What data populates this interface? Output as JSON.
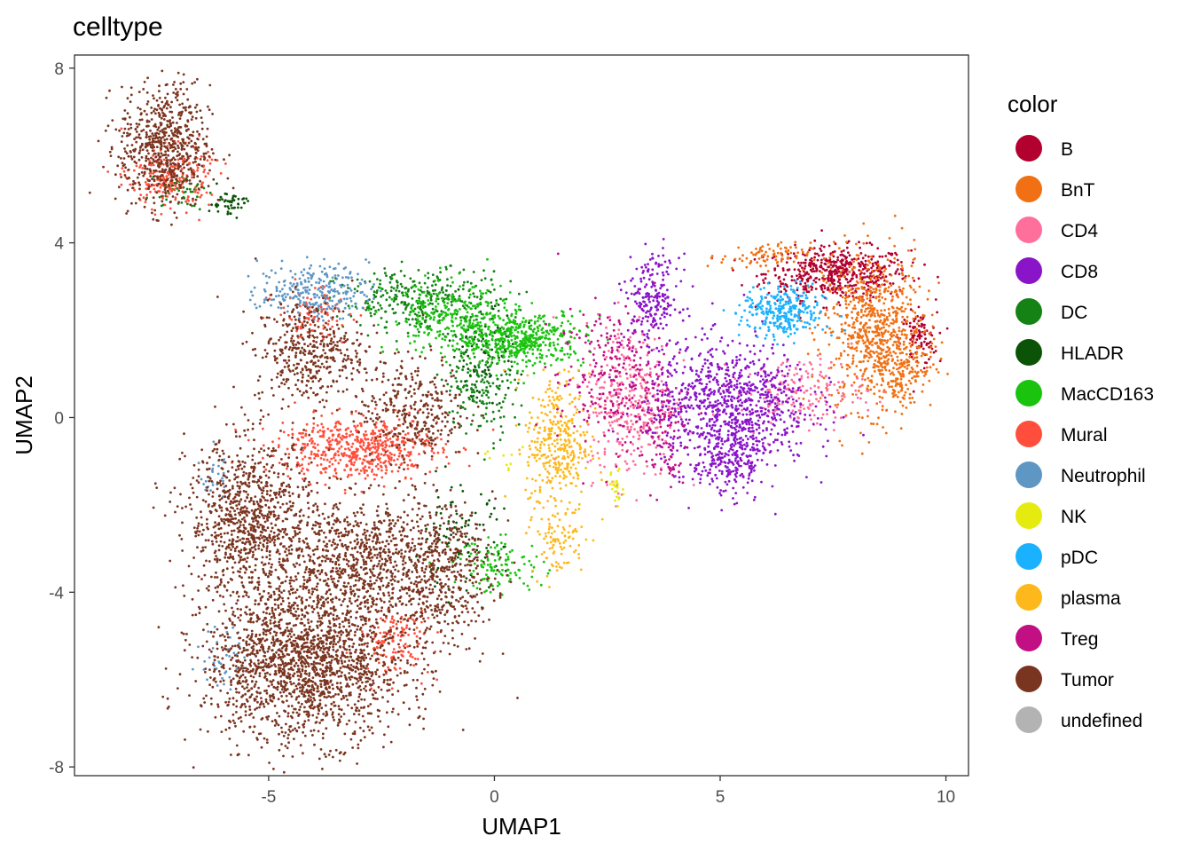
{
  "chart_data": {
    "type": "scatter",
    "title": "celltype",
    "xlabel": "UMAP1",
    "ylabel": "UMAP2",
    "xlim": [
      -9.3,
      10.5
    ],
    "ylim": [
      -8.2,
      8.3
    ],
    "xticks": [
      -5,
      0,
      5,
      10
    ],
    "xtick_labels": [
      "-5",
      "0",
      "5",
      "10"
    ],
    "yticks": [
      -8,
      -4,
      0,
      4,
      8
    ],
    "ytick_labels": [
      "-8",
      "-4",
      "0",
      "4",
      "8"
    ],
    "grid": false,
    "legend": {
      "title": "color",
      "position": "right"
    },
    "series": [
      {
        "name": "B",
        "color": "#B2002F",
        "clusters": [
          {
            "cx": 7.6,
            "cy": 3.3,
            "sx": 0.8,
            "sy": 0.3,
            "n": 520
          },
          {
            "cx": 9.4,
            "cy": 1.8,
            "sx": 0.2,
            "sy": 0.3,
            "n": 90
          }
        ]
      },
      {
        "name": "BnT",
        "color": "#F07013",
        "clusters": [
          {
            "cx": 8.4,
            "cy": 2.0,
            "sx": 0.55,
            "sy": 0.9,
            "n": 700
          },
          {
            "cx": 9.0,
            "cy": 1.2,
            "sx": 0.35,
            "sy": 0.5,
            "n": 160
          },
          {
            "cx": 6.0,
            "cy": 3.7,
            "sx": 0.5,
            "sy": 0.15,
            "n": 90
          }
        ]
      },
      {
        "name": "CD4",
        "color": "#FF6F9C",
        "clusters": [
          {
            "cx": 3.0,
            "cy": 0.4,
            "sx": 0.5,
            "sy": 0.9,
            "n": 360
          },
          {
            "cx": 6.8,
            "cy": 0.6,
            "sx": 0.7,
            "sy": 0.4,
            "n": 180
          }
        ]
      },
      {
        "name": "CD8",
        "color": "#8A14C8",
        "clusters": [
          {
            "cx": 5.2,
            "cy": 0.3,
            "sx": 0.9,
            "sy": 0.7,
            "n": 900
          },
          {
            "cx": 3.5,
            "cy": 2.7,
            "sx": 0.3,
            "sy": 0.5,
            "n": 220
          },
          {
            "cx": 5.2,
            "cy": -1.0,
            "sx": 0.4,
            "sy": 0.4,
            "n": 220
          }
        ]
      },
      {
        "name": "DC",
        "color": "#148214",
        "clusters": [
          {
            "cx": -1.6,
            "cy": 2.7,
            "sx": 0.9,
            "sy": 0.35,
            "n": 320
          },
          {
            "cx": -0.3,
            "cy": 0.8,
            "sx": 0.4,
            "sy": 0.6,
            "n": 180
          },
          {
            "cx": -7.0,
            "cy": 5.2,
            "sx": 0.3,
            "sy": 0.2,
            "n": 50
          }
        ]
      },
      {
        "name": "HLADR",
        "color": "#0B5307",
        "clusters": [
          {
            "cx": -5.9,
            "cy": 4.9,
            "sx": 0.2,
            "sy": 0.15,
            "n": 50
          },
          {
            "cx": -0.2,
            "cy": 1.5,
            "sx": 0.4,
            "sy": 0.5,
            "n": 90
          },
          {
            "cx": -0.8,
            "cy": -2.8,
            "sx": 0.5,
            "sy": 0.6,
            "n": 90
          }
        ]
      },
      {
        "name": "MacCD163",
        "color": "#19C30E",
        "clusters": [
          {
            "cx": 0.6,
            "cy": 1.8,
            "sx": 0.7,
            "sy": 0.3,
            "n": 480
          },
          {
            "cx": -1.0,
            "cy": 2.3,
            "sx": 0.7,
            "sy": 0.4,
            "n": 260
          },
          {
            "cx": 0.1,
            "cy": -3.4,
            "sx": 0.5,
            "sy": 0.3,
            "n": 120
          }
        ]
      },
      {
        "name": "Mural",
        "color": "#FF4F3C",
        "clusters": [
          {
            "cx": -3.0,
            "cy": -0.7,
            "sx": 0.9,
            "sy": 0.35,
            "n": 560
          },
          {
            "cx": -7.2,
            "cy": 5.5,
            "sx": 0.45,
            "sy": 0.35,
            "n": 220
          },
          {
            "cx": -2.2,
            "cy": -5.1,
            "sx": 0.4,
            "sy": 0.4,
            "n": 130
          },
          {
            "cx": -4.0,
            "cy": 2.4,
            "sx": 0.4,
            "sy": 0.3,
            "n": 90
          }
        ]
      },
      {
        "name": "Neutrophil",
        "color": "#5E96C4",
        "clusters": [
          {
            "cx": -4.0,
            "cy": 2.9,
            "sx": 0.6,
            "sy": 0.3,
            "n": 260
          },
          {
            "cx": -6.0,
            "cy": -5.5,
            "sx": 0.25,
            "sy": 0.4,
            "n": 40
          },
          {
            "cx": -6.2,
            "cy": -1.3,
            "sx": 0.15,
            "sy": 0.3,
            "n": 30
          }
        ]
      },
      {
        "name": "NK",
        "color": "#E6EB0F",
        "clusters": [
          {
            "cx": 2.7,
            "cy": -1.6,
            "sx": 0.08,
            "sy": 0.2,
            "n": 25
          },
          {
            "cx": 0.3,
            "cy": -0.9,
            "sx": 0.3,
            "sy": 0.2,
            "n": 10
          }
        ]
      },
      {
        "name": "pDC",
        "color": "#1AB2FF",
        "clusters": [
          {
            "cx": 6.4,
            "cy": 2.4,
            "sx": 0.45,
            "sy": 0.3,
            "n": 300
          }
        ]
      },
      {
        "name": "plasma",
        "color": "#FDB81C",
        "clusters": [
          {
            "cx": 1.4,
            "cy": -0.6,
            "sx": 0.35,
            "sy": 0.8,
            "n": 360
          },
          {
            "cx": 1.4,
            "cy": -2.8,
            "sx": 0.3,
            "sy": 0.4,
            "n": 90
          }
        ]
      },
      {
        "name": "Treg",
        "color": "#C20F83",
        "clusters": [
          {
            "cx": 2.6,
            "cy": 0.9,
            "sx": 0.6,
            "sy": 0.8,
            "n": 260
          },
          {
            "cx": 3.7,
            "cy": -0.5,
            "sx": 0.3,
            "sy": 0.6,
            "n": 90
          }
        ]
      },
      {
        "name": "Tumor",
        "color": "#7A3520",
        "clusters": [
          {
            "cx": -4.2,
            "cy": -5.6,
            "sx": 1.1,
            "sy": 0.9,
            "n": 1900
          },
          {
            "cx": -5.4,
            "cy": -2.3,
            "sx": 0.7,
            "sy": 0.9,
            "n": 900
          },
          {
            "cx": -3.0,
            "cy": -3.2,
            "sx": 1.0,
            "sy": 0.7,
            "n": 800
          },
          {
            "cx": -1.2,
            "cy": -3.6,
            "sx": 0.6,
            "sy": 0.8,
            "n": 450
          },
          {
            "cx": -7.3,
            "cy": 6.2,
            "sx": 0.5,
            "sy": 0.7,
            "n": 650
          },
          {
            "cx": -4.1,
            "cy": 1.5,
            "sx": 0.6,
            "sy": 0.6,
            "n": 420
          },
          {
            "cx": -1.8,
            "cy": 0.2,
            "sx": 0.6,
            "sy": 0.6,
            "n": 320
          }
        ]
      },
      {
        "name": "undefined",
        "color": "#B3B3B3",
        "clusters": []
      }
    ]
  }
}
